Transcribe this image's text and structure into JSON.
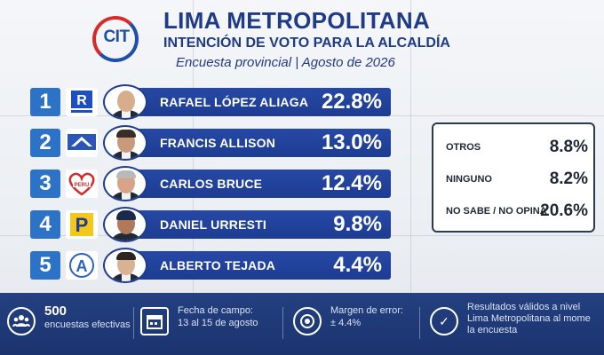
{
  "header": {
    "logo_text": "CIT",
    "title": "LIMA METROPOLITANA",
    "subtitle": "INTENCIÓN DE VOTO PARA LA ALCALDÍA",
    "survey_line": "Encuesta provincial | Agosto de 2026"
  },
  "candidates": [
    {
      "rank": "1",
      "name": "RAFAEL LÓPEZ ALIAGA",
      "pct": "22.8%",
      "party_icon": "renovacion-popular-logo"
    },
    {
      "rank": "2",
      "name": "FRANCIS ALLISON",
      "pct": "13.0%",
      "party_icon": "avanza-pais-logo"
    },
    {
      "rank": "3",
      "name": "CARLOS BRUCE",
      "pct": "12.4%",
      "party_icon": "somos-peru-logo"
    },
    {
      "rank": "4",
      "name": "DANIEL URRESTI",
      "pct": "9.8%",
      "party_icon": "podemos-peru-logo"
    },
    {
      "rank": "5",
      "name": "ALBERTO TEJADA",
      "pct": "4.4%",
      "party_icon": "alianza-progreso-logo"
    }
  ],
  "others": [
    {
      "label": "OTROS",
      "value": "8.8%"
    },
    {
      "label": "NINGUNO",
      "value": "8.2%"
    },
    {
      "label": "NO SABE / NO OPINA",
      "value": "20.6%"
    }
  ],
  "footer": {
    "sample_number": "500",
    "sample_label": "encuestas efectivas",
    "fieldwork_label": "Fecha de campo:",
    "fieldwork_value": "13 al 15 de agosto",
    "margin_label": "Margen de error:",
    "margin_value": "± 4.4%",
    "validity_line1": "Resultados válidos a nivel",
    "validity_line2": "Lima Metropolitana al mome",
    "validity_line3": "la encuesta"
  },
  "colors": {
    "bar": "#1d3c92",
    "rank_badge": "#2c73c7",
    "title": "#1f3a86",
    "footer": "#1b3470"
  }
}
